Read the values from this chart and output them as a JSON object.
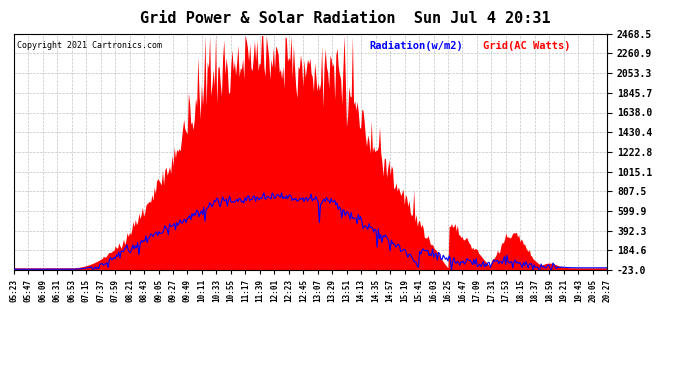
{
  "title": "Grid Power & Solar Radiation  Sun Jul 4 20:31",
  "copyright": "Copyright 2021 Cartronics.com",
  "legend_radiation": "Radiation(w/m2)",
  "legend_grid": "Grid(AC Watts)",
  "yticks": [
    2468.5,
    2260.9,
    2053.3,
    1845.7,
    1638.0,
    1430.4,
    1222.8,
    1015.1,
    807.5,
    599.9,
    392.3,
    184.6,
    -23.0
  ],
  "ylim": [
    -23.0,
    2468.5
  ],
  "xtick_labels": [
    "05:23",
    "05:47",
    "06:09",
    "06:31",
    "06:53",
    "07:15",
    "07:37",
    "07:59",
    "08:21",
    "08:43",
    "09:05",
    "09:27",
    "09:49",
    "10:11",
    "10:33",
    "10:55",
    "11:17",
    "11:39",
    "12:01",
    "12:23",
    "12:45",
    "13:07",
    "13:29",
    "13:51",
    "14:13",
    "14:35",
    "14:57",
    "15:19",
    "15:41",
    "16:03",
    "16:25",
    "16:47",
    "17:09",
    "17:31",
    "17:53",
    "18:15",
    "18:37",
    "18:59",
    "19:21",
    "19:43",
    "20:05",
    "20:27"
  ],
  "bg_color": "#ffffff",
  "grid_color": "#aaaaaa",
  "radiation_fill_color": "#ff0000",
  "grid_line_color": "#0000ff",
  "title_color": "#000000",
  "copyright_color": "#000000",
  "legend_radiation_color": "#0000ff",
  "legend_grid_color": "#ff0000"
}
